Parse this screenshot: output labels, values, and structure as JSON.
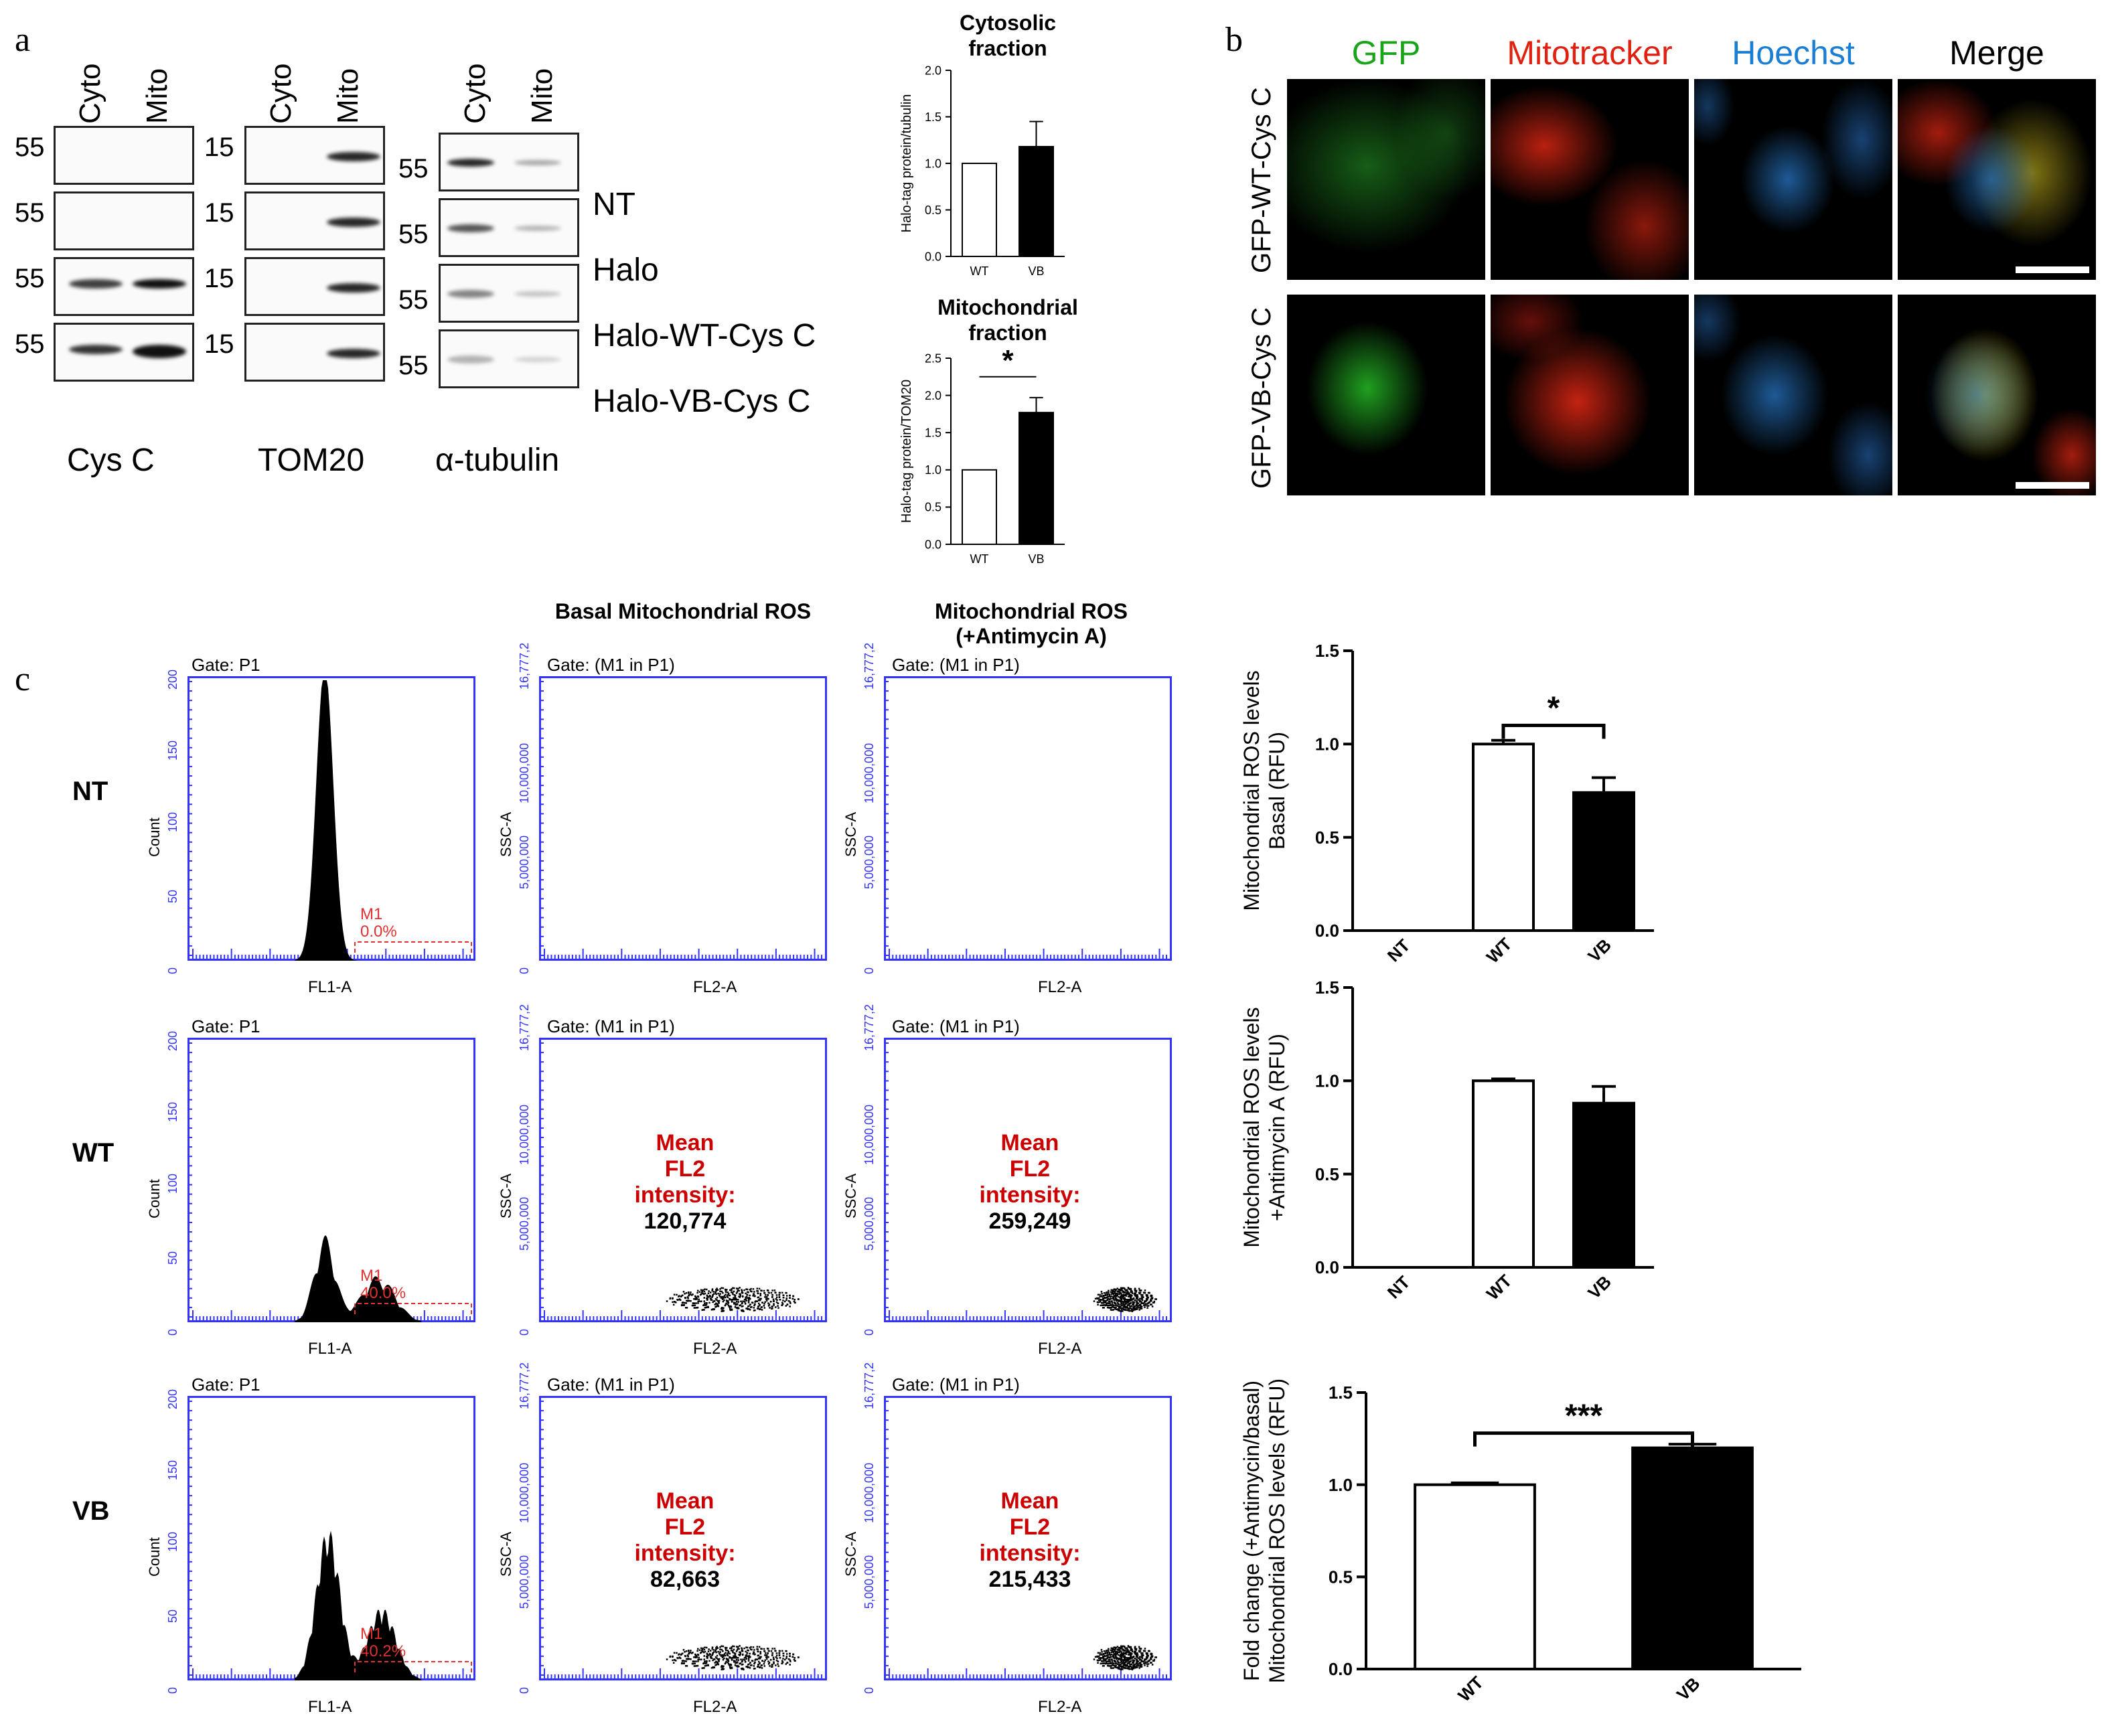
{
  "panels": {
    "a": "a",
    "b": "b",
    "c": "c"
  },
  "western": {
    "col_headers": [
      "Cyto",
      "Mito"
    ],
    "blots": [
      {
        "name": "Cys C",
        "mw": [
          "55",
          "55",
          "55",
          "55"
        ]
      },
      {
        "name": "TOM20",
        "mw": [
          "15",
          "15",
          "15",
          "15"
        ]
      },
      {
        "name": "α-tubulin",
        "mw": [
          "55",
          "55",
          "55",
          "55"
        ]
      }
    ],
    "rows": [
      "NT",
      "Halo",
      "Halo-WT-Cys C",
      "Halo-VB-Cys C"
    ]
  },
  "microscopy": {
    "channels": [
      "GFP",
      "Mitotracker",
      "Hoechst",
      "Merge"
    ],
    "channel_colors": [
      "#1aa41a",
      "#e02010",
      "#1a7fd4",
      "#000000"
    ],
    "rows": [
      "GFP-WT-Cys C",
      "GFP-VB-Cys C"
    ]
  },
  "flow": {
    "col_titles": [
      "Basal Mitochondrial ROS",
      "Mitochondrial ROS (+Antimycin A)"
    ],
    "rows": [
      "NT",
      "WT",
      "VB"
    ],
    "hist_gate": "Gate: P1",
    "scatter_gate": "Gate: (M1 in P1)",
    "hist_xlabel": "FL1-A",
    "hist_ylabel": "Count",
    "scatter_xlabel": "FL2-A",
    "scatter_ylabel": "SSC-A",
    "hist_yticks": [
      "0",
      "50",
      "100",
      "150",
      "200"
    ],
    "scatter_yticks": [
      "0",
      "5,000,000",
      "10,000,000",
      "16,777,2"
    ],
    "m1_label": "M1",
    "m1_pct": [
      "0.0%",
      "40.0%",
      "40.2%"
    ],
    "mean_label": [
      "Mean",
      "FL2",
      "intensity:"
    ],
    "mean_values": {
      "WT": {
        "basal": "120,774",
        "antimycin": "259,249"
      },
      "VB": {
        "basal": "82,663",
        "antimycin": "215,433"
      }
    }
  },
  "chart_data": [
    {
      "type": "bar",
      "title": "Cytosolic fraction",
      "categories": [
        "WT",
        "VB"
      ],
      "values": [
        1.0,
        1.18
      ],
      "errors": [
        0,
        0.27
      ],
      "ylabel": "Halo-tag protein/tubulin",
      "ylim": [
        0,
        2.0
      ],
      "yticks": [
        "0.0",
        "0.5",
        "1.0",
        "1.5",
        "2.0"
      ],
      "fills": [
        "#ffffff",
        "#000000"
      ]
    },
    {
      "type": "bar",
      "title": "Mitochondrial fraction",
      "categories": [
        "WT",
        "VB"
      ],
      "values": [
        1.0,
        1.77
      ],
      "errors": [
        0,
        0.2
      ],
      "ylabel": "Halo-tag protein/TOM20",
      "ylim": [
        0,
        2.5
      ],
      "yticks": [
        "0.0",
        "0.5",
        "1.0",
        "1.5",
        "2.0",
        "2.5"
      ],
      "fills": [
        "#ffffff",
        "#000000"
      ],
      "significance": "*"
    },
    {
      "type": "bar",
      "categories": [
        "NT",
        "WT",
        "VB"
      ],
      "values": [
        0,
        1.0,
        0.74
      ],
      "errors": [
        0,
        0.02,
        0.08
      ],
      "ylabel": "Mitochondrial ROS levels Basal (RFU)",
      "ylim": [
        0,
        1.5
      ],
      "yticks": [
        "0.0",
        "0.5",
        "1.0",
        "1.5"
      ],
      "fills": [
        "#ffffff",
        "#ffffff",
        "#000000"
      ],
      "significance": "*"
    },
    {
      "type": "bar",
      "categories": [
        "NT",
        "WT",
        "VB"
      ],
      "values": [
        0,
        1.0,
        0.88
      ],
      "errors": [
        0,
        0.01,
        0.09
      ],
      "ylabel": "Mitochondrial ROS levels +Antimycin A (RFU)",
      "ylim": [
        0,
        1.5
      ],
      "yticks": [
        "0.0",
        "0.5",
        "1.0",
        "1.5"
      ],
      "fills": [
        "#ffffff",
        "#ffffff",
        "#000000"
      ]
    },
    {
      "type": "bar",
      "categories": [
        "WT",
        "VB"
      ],
      "values": [
        1.0,
        1.2
      ],
      "errors": [
        0.01,
        0.02
      ],
      "ylabel": "Fold change (+Antimycin/basal) Mitochondrial ROS levels (RFU)",
      "ylim": [
        0,
        1.5
      ],
      "yticks": [
        "0.0",
        "0.5",
        "1.0",
        "1.5"
      ],
      "fills": [
        "#ffffff",
        "#000000"
      ],
      "significance": "***"
    }
  ]
}
